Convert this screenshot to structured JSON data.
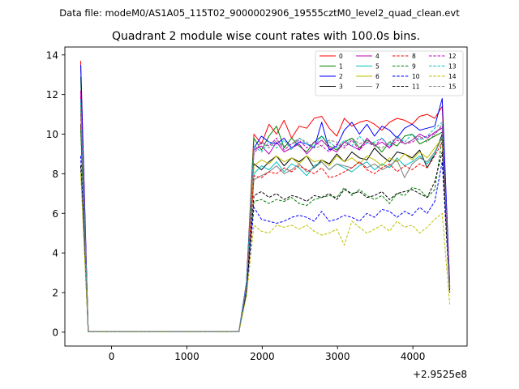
{
  "header": {
    "suptitle": "Data file: modeM0/AS1A05_115T02_9000002906_19555cztM0_level2_quad_clean.evt",
    "title": "Quadrant 2 module wise count rates with 100.0s bins."
  },
  "chart_data": {
    "type": "line",
    "title": "Quadrant 2 module wise count rates with 100.0s bins.",
    "xlabel": "",
    "ylabel": "",
    "x_offset_label": "+2.9525e8",
    "xlim": [
      -620,
      4720
    ],
    "ylim": [
      -0.7,
      14.4
    ],
    "xticks": [
      0,
      1000,
      2000,
      3000,
      4000
    ],
    "xtick_labels": [
      "0",
      "1000",
      "2000",
      "3000",
      "4000"
    ],
    "yticks": [
      0,
      2,
      4,
      6,
      8,
      10,
      12,
      14
    ],
    "ytick_labels": [
      "0",
      "2",
      "4",
      "6",
      "8",
      "10",
      "12",
      "14"
    ],
    "grid": false,
    "legend_position": "top-right",
    "x": [
      -410,
      -310,
      1690,
      1790,
      1890,
      1990,
      2090,
      2190,
      2290,
      2390,
      2490,
      2590,
      2690,
      2790,
      2890,
      2990,
      3090,
      3190,
      3290,
      3390,
      3490,
      3590,
      3690,
      3790,
      3890,
      3990,
      4090,
      4190,
      4290,
      4390,
      4490
    ],
    "series": [
      {
        "name": "0",
        "color": "#ff0000",
        "dash": "solid",
        "values": [
          13.7,
          0.02,
          0.02,
          2.5,
          10.0,
          9.5,
          10.5,
          10.0,
          10.7,
          9.8,
          10.4,
          10.3,
          10.8,
          10.9,
          10.3,
          9.9,
          10.8,
          10.4,
          10.6,
          10.7,
          10.5,
          10.2,
          10.6,
          10.8,
          10.7,
          10.5,
          10.9,
          11.0,
          10.8,
          11.4,
          2.5
        ]
      },
      {
        "name": "1",
        "color": "#008000",
        "dash": "solid",
        "values": [
          12.9,
          0.02,
          0.02,
          2.4,
          9.8,
          9.2,
          9.9,
          10.4,
          9.3,
          9.8,
          9.4,
          9.1,
          9.6,
          9.9,
          9.4,
          9.2,
          9.6,
          9.8,
          9.3,
          9.7,
          9.5,
          9.1,
          9.6,
          9.4,
          9.9,
          10.0,
          9.5,
          9.7,
          9.9,
          10.1,
          2.3
        ]
      },
      {
        "name": "2",
        "color": "#0000ff",
        "dash": "solid",
        "values": [
          13.5,
          0.02,
          0.02,
          2.5,
          9.3,
          9.9,
          9.6,
          9.5,
          9.8,
          9.3,
          9.6,
          9.5,
          9.3,
          10.6,
          9.2,
          9.4,
          10.2,
          10.6,
          10.0,
          10.5,
          9.9,
          10.4,
          10.2,
          9.8,
          10.3,
          10.5,
          10.2,
          10.3,
          10.4,
          11.8,
          2.4
        ]
      },
      {
        "name": "3",
        "color": "#000000",
        "dash": "solid",
        "values": [
          10.5,
          0.02,
          0.02,
          2.3,
          8.5,
          8.2,
          8.6,
          8.9,
          8.4,
          8.8,
          8.6,
          8.9,
          8.3,
          8.7,
          8.5,
          9.0,
          8.6,
          9.1,
          8.8,
          8.7,
          9.3,
          8.9,
          8.6,
          9.1,
          9.0,
          8.8,
          9.2,
          8.3,
          9.0,
          10.0,
          2.2
        ]
      },
      {
        "name": "4",
        "color": "#bf00bf",
        "dash": "solid",
        "values": [
          12.2,
          0.02,
          0.02,
          2.4,
          9.2,
          9.4,
          9.0,
          9.6,
          9.1,
          9.3,
          9.5,
          9.0,
          9.4,
          9.7,
          9.3,
          9.1,
          9.6,
          9.4,
          9.2,
          9.8,
          9.4,
          9.6,
          9.3,
          9.9,
          9.5,
          9.7,
          10.0,
          9.8,
          10.1,
          10.3,
          2.3
        ]
      },
      {
        "name": "5",
        "color": "#00bfbf",
        "dash": "solid",
        "values": [
          11.8,
          0.02,
          0.02,
          2.4,
          8.0,
          8.4,
          8.2,
          8.6,
          8.1,
          8.5,
          8.3,
          7.9,
          8.4,
          8.6,
          8.2,
          8.5,
          8.3,
          8.1,
          8.4,
          8.6,
          8.2,
          8.5,
          8.3,
          8.8,
          8.4,
          8.6,
          8.9,
          8.5,
          9.0,
          9.9,
          2.3
        ]
      },
      {
        "name": "6",
        "color": "#bfbf00",
        "dash": "solid",
        "values": [
          11.5,
          0.02,
          0.02,
          2.3,
          8.4,
          8.7,
          8.5,
          8.9,
          8.6,
          8.8,
          8.5,
          8.9,
          8.6,
          8.7,
          8.4,
          8.9,
          8.6,
          8.8,
          8.5,
          8.9,
          8.7,
          8.4,
          8.8,
          8.6,
          9.0,
          8.7,
          9.1,
          8.8,
          9.3,
          9.8,
          2.2
        ]
      },
      {
        "name": "7",
        "color": "#808080",
        "dash": "solid",
        "values": [
          11.2,
          0.02,
          0.02,
          2.3,
          7.7,
          7.9,
          8.1,
          8.4,
          8.0,
          8.2,
          8.5,
          8.1,
          8.3,
          8.6,
          8.2,
          8.5,
          8.4,
          8.3,
          8.6,
          8.3,
          8.5,
          8.2,
          8.4,
          8.7,
          7.8,
          8.5,
          8.8,
          8.6,
          9.1,
          9.8,
          2.2
        ]
      },
      {
        "name": "8",
        "color": "#ff0000",
        "dash": "dashed",
        "values": [
          11.0,
          0.02,
          0.02,
          2.2,
          7.9,
          7.8,
          8.1,
          8.0,
          8.3,
          8.1,
          8.4,
          8.2,
          8.0,
          8.3,
          7.8,
          7.9,
          8.1,
          8.3,
          8.6,
          8.2,
          8.0,
          8.3,
          8.5,
          8.1,
          8.4,
          8.2,
          8.5,
          8.3,
          8.9,
          9.6,
          2.1
        ]
      },
      {
        "name": "9",
        "color": "#008000",
        "dash": "dashed",
        "values": [
          10.2,
          0.02,
          0.02,
          2.0,
          6.6,
          6.7,
          6.5,
          6.7,
          6.6,
          6.8,
          6.5,
          6.4,
          6.7,
          6.8,
          6.9,
          6.8,
          7.3,
          6.9,
          7.2,
          6.9,
          6.7,
          6.9,
          6.5,
          7.0,
          6.9,
          7.3,
          7.2,
          6.8,
          7.2,
          9.8,
          2.1
        ]
      },
      {
        "name": "10",
        "color": "#0000ff",
        "dash": "dashed",
        "values": [
          8.9,
          0.02,
          0.02,
          1.9,
          6.3,
          5.7,
          5.6,
          5.5,
          5.6,
          5.8,
          5.9,
          5.8,
          5.6,
          6.1,
          5.6,
          5.7,
          5.9,
          5.8,
          5.6,
          6.0,
          5.8,
          6.2,
          6.1,
          5.8,
          6.1,
          5.9,
          6.3,
          6.0,
          6.6,
          8.6,
          2.0
        ]
      },
      {
        "name": "11",
        "color": "#000000",
        "dash": "dashed",
        "values": [
          8.4,
          0.02,
          0.02,
          2.0,
          6.9,
          7.1,
          6.8,
          7.0,
          6.7,
          6.9,
          6.8,
          6.6,
          6.9,
          6.8,
          7.0,
          6.7,
          7.2,
          7.0,
          7.1,
          6.8,
          6.9,
          7.1,
          6.7,
          7.0,
          7.1,
          7.2,
          7.0,
          6.8,
          7.6,
          9.1,
          2.0
        ]
      },
      {
        "name": "12",
        "color": "#bf00bf",
        "dash": "dashed",
        "values": [
          11.9,
          0.02,
          0.02,
          2.4,
          9.0,
          9.6,
          9.4,
          9.8,
          9.2,
          9.5,
          9.7,
          9.3,
          9.6,
          9.4,
          9.1,
          9.5,
          9.3,
          9.7,
          9.2,
          9.6,
          9.4,
          9.8,
          9.3,
          9.7,
          9.5,
          9.6,
          9.8,
          9.9,
          10.0,
          10.4,
          2.3
        ]
      },
      {
        "name": "13",
        "color": "#00bfbf",
        "dash": "dashed",
        "values": [
          11.6,
          0.02,
          0.02,
          2.4,
          9.4,
          9.1,
          9.6,
          9.3,
          9.7,
          9.2,
          9.8,
          9.5,
          9.4,
          9.9,
          9.6,
          9.3,
          9.7,
          9.4,
          9.9,
          9.5,
          9.6,
          9.8,
          9.4,
          9.9,
          9.6,
          10.0,
          9.7,
          9.9,
          10.3,
          10.6,
          2.3
        ]
      },
      {
        "name": "14",
        "color": "#bfbf00",
        "dash": "dashed",
        "values": [
          8.0,
          0.02,
          0.02,
          1.8,
          5.4,
          5.1,
          5.0,
          5.4,
          5.3,
          5.4,
          5.2,
          5.4,
          5.1,
          4.9,
          5.0,
          5.2,
          4.4,
          5.6,
          5.3,
          5.0,
          5.2,
          5.4,
          5.1,
          5.6,
          5.3,
          5.4,
          5.0,
          5.3,
          5.7,
          6.0,
          1.4
        ]
      },
      {
        "name": "15",
        "color": "#808080",
        "dash": "dashed",
        "values": [
          11.3,
          0.02,
          0.02,
          2.3,
          9.2,
          9.6,
          9.3,
          9.7,
          9.4,
          9.5,
          9.8,
          9.6,
          9.3,
          9.4,
          9.7,
          9.6,
          9.4,
          9.8,
          9.5,
          9.7,
          9.4,
          9.3,
          9.6,
          9.8,
          9.5,
          9.7,
          9.9,
          9.6,
          10.0,
          10.5,
          2.2
        ]
      }
    ]
  }
}
